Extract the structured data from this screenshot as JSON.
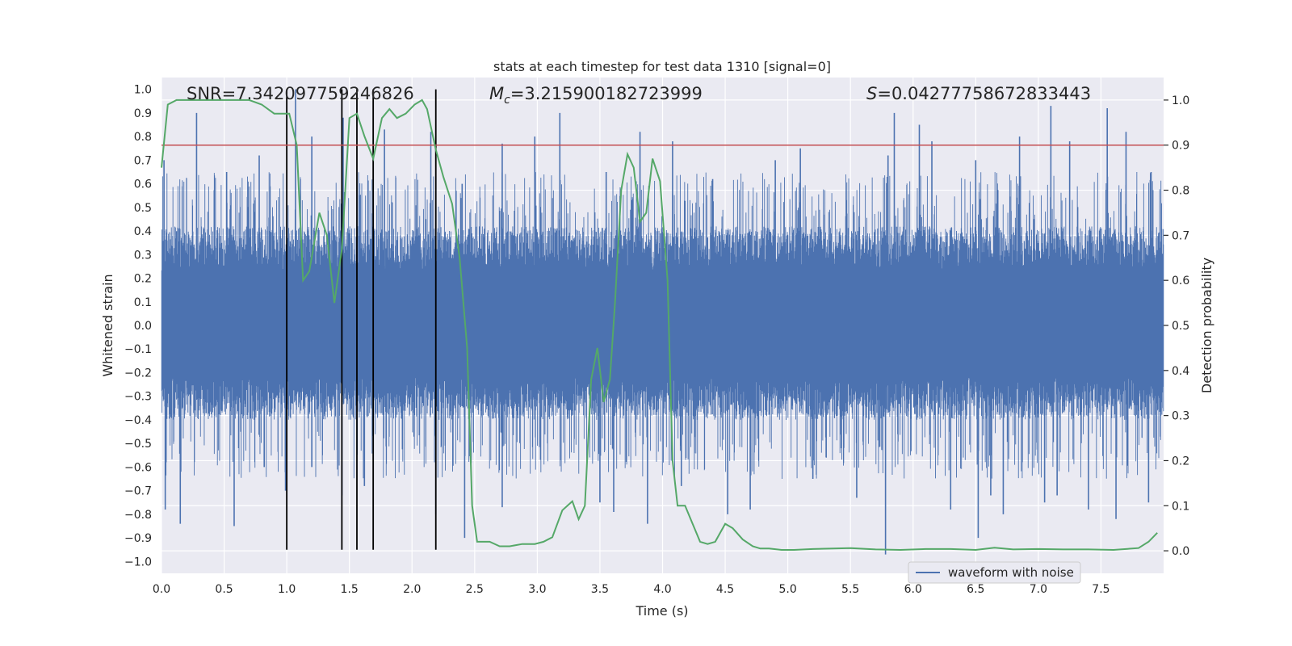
{
  "chart_data": {
    "type": "line",
    "title": "stats at each timestep for test data 1310 [signal=0]",
    "xlabel": "Time (s)",
    "ylabel_left": "Whitened strain",
    "ylabel_right": "Detection probability",
    "xlim": [
      0.0,
      8.0
    ],
    "ylim_left": [
      -1.05,
      1.05
    ],
    "ylim_right": [
      -0.05,
      1.05
    ],
    "x_ticks": [
      "0.0",
      "0.5",
      "1.0",
      "1.5",
      "2.0",
      "2.5",
      "3.0",
      "3.5",
      "4.0",
      "4.5",
      "5.0",
      "5.5",
      "6.0",
      "6.5",
      "7.0",
      "7.5"
    ],
    "y_ticks_left": [
      "1.0",
      "0.9",
      "0.8",
      "0.7",
      "0.6",
      "0.5",
      "0.4",
      "0.3",
      "0.2",
      "0.1",
      "0.0",
      "-0.1",
      "-0.2",
      "-0.3",
      "-0.4",
      "-0.5",
      "-0.6",
      "-0.7",
      "-0.8",
      "-0.9",
      "-1.0"
    ],
    "y_ticks_right": [
      "1.0",
      "0.9",
      "0.8",
      "0.7",
      "0.6",
      "0.5",
      "0.4",
      "0.3",
      "0.2",
      "0.1",
      "0.0"
    ],
    "grid": true,
    "legend_position": "lower-right",
    "annotations": [
      {
        "text": "SNR=7.342097759246826",
        "x": 0.2
      },
      {
        "text": "=3.215900182723999",
        "symbol": "M",
        "subscript": "c",
        "x": 2.6
      },
      {
        "text": "=0.04277758672833443",
        "symbol": "S",
        "x": 5.6
      }
    ],
    "threshold": {
      "value": 0.9,
      "axis": "right",
      "color": "#c44e52"
    },
    "vertical_markers": [
      1.0,
      1.44,
      1.56,
      1.69,
      2.19
    ],
    "series": [
      {
        "name": "waveform with noise",
        "axis": "left",
        "color": "#4c72b0",
        "style": "noise",
        "typical_envelope": [
          -0.4,
          0.42
        ],
        "peaks_up": [
          [
            0.02,
            0.7
          ],
          [
            0.28,
            0.9
          ],
          [
            0.52,
            0.65
          ],
          [
            0.78,
            0.72
          ],
          [
            1.07,
            1.0
          ],
          [
            1.2,
            0.8
          ],
          [
            1.45,
            0.88
          ],
          [
            1.78,
            0.83
          ],
          [
            2.15,
            0.82
          ],
          [
            2.4,
            0.6
          ],
          [
            2.72,
            0.77
          ],
          [
            2.98,
            0.8
          ],
          [
            3.18,
            0.9
          ],
          [
            3.55,
            0.65
          ],
          [
            3.82,
            0.82
          ],
          [
            4.08,
            0.78
          ],
          [
            4.4,
            0.62
          ],
          [
            4.9,
            0.7
          ],
          [
            5.1,
            0.75
          ],
          [
            5.8,
            0.72
          ],
          [
            5.85,
            0.9
          ],
          [
            6.05,
            0.85
          ],
          [
            6.15,
            0.78
          ],
          [
            6.5,
            0.7
          ],
          [
            6.85,
            0.8
          ],
          [
            7.1,
            0.93
          ],
          [
            7.25,
            0.78
          ],
          [
            7.55,
            0.92
          ],
          [
            7.7,
            0.82
          ],
          [
            7.9,
            0.65
          ]
        ],
        "peaks_down": [
          [
            0.03,
            -0.78
          ],
          [
            0.15,
            -0.84
          ],
          [
            0.58,
            -0.85
          ],
          [
            0.82,
            -0.6
          ],
          [
            0.99,
            -0.7
          ],
          [
            1.2,
            -0.6
          ],
          [
            1.44,
            -0.72
          ],
          [
            1.62,
            -0.68
          ],
          [
            2.19,
            -0.8
          ],
          [
            2.42,
            -0.9
          ],
          [
            2.72,
            -0.77
          ],
          [
            3.5,
            -0.75
          ],
          [
            3.61,
            -0.79
          ],
          [
            3.88,
            -0.84
          ],
          [
            4.15,
            -0.68
          ],
          [
            4.52,
            -0.8
          ],
          [
            4.7,
            -0.78
          ],
          [
            5.2,
            -0.65
          ],
          [
            5.55,
            -0.73
          ],
          [
            5.78,
            -0.97
          ],
          [
            6.3,
            -0.78
          ],
          [
            6.52,
            -0.9
          ],
          [
            6.62,
            -0.72
          ],
          [
            6.72,
            -0.8
          ],
          [
            7.05,
            -0.75
          ],
          [
            7.15,
            -0.72
          ],
          [
            7.4,
            -0.78
          ],
          [
            7.62,
            -0.82
          ],
          [
            7.88,
            -0.75
          ]
        ]
      },
      {
        "axis": "right",
        "color": "#55a868",
        "style": "line",
        "x": [
          0.0,
          0.05,
          0.12,
          0.2,
          0.3,
          0.5,
          0.7,
          0.8,
          0.9,
          0.97,
          1.02,
          1.08,
          1.13,
          1.18,
          1.26,
          1.32,
          1.38,
          1.44,
          1.5,
          1.56,
          1.62,
          1.69,
          1.76,
          1.82,
          1.88,
          1.95,
          2.02,
          2.08,
          2.12,
          2.19,
          2.25,
          2.32,
          2.38,
          2.44,
          2.48,
          2.52,
          2.56,
          2.62,
          2.7,
          2.78,
          2.88,
          2.98,
          3.05,
          3.12,
          3.2,
          3.28,
          3.33,
          3.38,
          3.43,
          3.48,
          3.53,
          3.58,
          3.62,
          3.67,
          3.72,
          3.77,
          3.82,
          3.87,
          3.92,
          3.98,
          4.04,
          4.08,
          4.12,
          4.18,
          4.24,
          4.3,
          4.36,
          4.42,
          4.5,
          4.56,
          4.64,
          4.72,
          4.78,
          4.85,
          4.95,
          5.05,
          5.2,
          5.5,
          5.7,
          5.9,
          6.1,
          6.3,
          6.5,
          6.65,
          6.8,
          7.0,
          7.2,
          7.4,
          7.6,
          7.8,
          7.88,
          7.95
        ],
        "values": [
          0.85,
          0.99,
          1.0,
          1.0,
          1.0,
          1.0,
          1.0,
          0.99,
          0.97,
          0.97,
          0.97,
          0.9,
          0.6,
          0.62,
          0.75,
          0.7,
          0.55,
          0.67,
          0.96,
          0.97,
          0.92,
          0.87,
          0.96,
          0.98,
          0.96,
          0.97,
          0.99,
          1.0,
          0.98,
          0.89,
          0.83,
          0.77,
          0.65,
          0.45,
          0.1,
          0.02,
          0.02,
          0.02,
          0.01,
          0.01,
          0.015,
          0.015,
          0.02,
          0.03,
          0.09,
          0.11,
          0.07,
          0.1,
          0.38,
          0.45,
          0.33,
          0.38,
          0.55,
          0.8,
          0.88,
          0.85,
          0.73,
          0.75,
          0.87,
          0.82,
          0.6,
          0.2,
          0.1,
          0.1,
          0.06,
          0.02,
          0.015,
          0.02,
          0.06,
          0.05,
          0.025,
          0.01,
          0.005,
          0.005,
          0.002,
          0.002,
          0.004,
          0.006,
          0.003,
          0.002,
          0.004,
          0.004,
          0.002,
          0.007,
          0.003,
          0.004,
          0.003,
          0.003,
          0.002,
          0.006,
          0.02,
          0.04
        ]
      }
    ]
  }
}
